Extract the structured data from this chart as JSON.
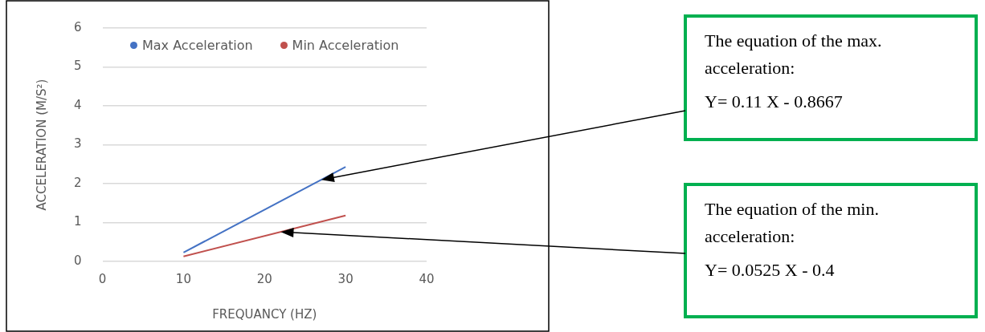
{
  "chart_data": {
    "type": "line",
    "xlabel": "FREQUANCY (HZ)",
    "ylabel": "ACCELERATION (M/S²)",
    "x": [
      10,
      30
    ],
    "series": [
      {
        "name": "Max Acceleration",
        "color": "#4472c4",
        "values": [
          0.23,
          2.43
        ]
      },
      {
        "name": "Min Acceleration",
        "color": "#c0504d",
        "values": [
          0.13,
          1.18
        ]
      }
    ],
    "xlim": [
      0,
      40
    ],
    "xticks": [
      0,
      10,
      20,
      30,
      40
    ],
    "ylim": [
      0,
      6
    ],
    "yticks": [
      0,
      1,
      2,
      3,
      4,
      5,
      6
    ],
    "grid": "y",
    "legend": "top",
    "marker": "none",
    "line_style": "solid",
    "annotations": [
      "The equation of the max.\nacceleration:\nY= 0.11 X - 0.8667",
      "The equation of the min.\nacceleration:\nY= 0.0525 X - 0.4"
    ]
  }
}
